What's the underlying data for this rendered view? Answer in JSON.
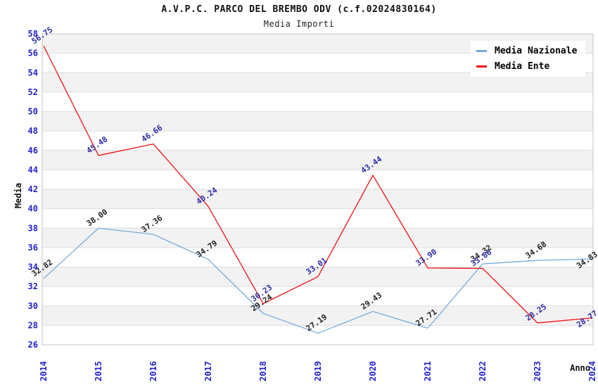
{
  "title": "A.V.P.C. PARCO DEL BREMBO ODV (c.f.02024830164)",
  "subtitle": "Media Importi",
  "chart_data": {
    "type": "line",
    "x": [
      2014,
      2015,
      2016,
      2017,
      2018,
      2019,
      2020,
      2021,
      2022,
      2023,
      2024
    ],
    "series": [
      {
        "name": "Media Nazionale",
        "color": "#76abdd",
        "label_color": "#1f1f1f",
        "values": [
          32.82,
          38.0,
          37.36,
          34.79,
          29.24,
          27.19,
          29.43,
          27.71,
          34.32,
          34.68,
          34.83
        ]
      },
      {
        "name": "Media Ente",
        "color": "#ee1111",
        "label_color": "#2b2ba6",
        "values": [
          56.75,
          45.48,
          46.66,
          40.24,
          30.23,
          33.01,
          43.44,
          33.9,
          33.86,
          28.25,
          28.77
        ]
      }
    ],
    "xlabel": "Anno",
    "ylabel": "Media",
    "ylim": [
      26,
      58
    ],
    "ytick_step": 2,
    "grid": true,
    "legend_position": "top-right",
    "styles": {
      "tick_color": "#2222cc",
      "axis_title_color": "#111111",
      "band_gray": "#f2f2f2",
      "band_white": "#ffffff",
      "gridline_color": "#dddddd",
      "plot_border_color": "#c6c6c6"
    }
  }
}
